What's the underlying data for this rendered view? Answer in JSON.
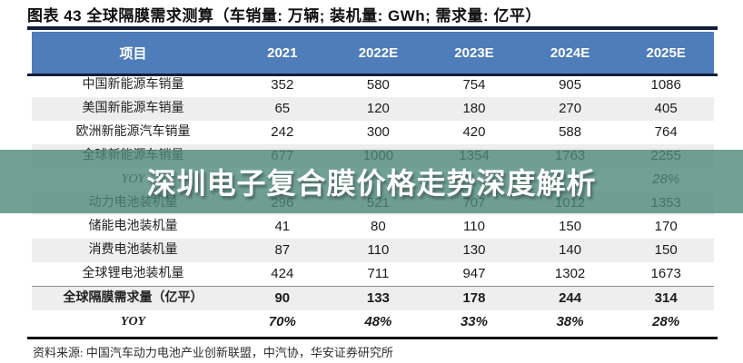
{
  "title": "图表 43 全球隔膜需求测算（车销量: 万辆; 装机量: GWh; 需求量: 亿平）",
  "table": {
    "header": [
      "项目",
      "2021",
      "2022E",
      "2023E",
      "2024E",
      "2025E"
    ],
    "rows": [
      {
        "label": "中国新能源车销量",
        "values": [
          "352",
          "580",
          "754",
          "905",
          "1086"
        ],
        "shaded": false,
        "style": "normal",
        "separator_top": false
      },
      {
        "label": "美国新能源车销量",
        "values": [
          "65",
          "120",
          "180",
          "270",
          "405"
        ],
        "shaded": true,
        "style": "normal",
        "separator_top": false
      },
      {
        "label": "欧洲新能源汽车销量",
        "values": [
          "242",
          "300",
          "420",
          "588",
          "764"
        ],
        "shaded": false,
        "style": "normal",
        "separator_top": false
      },
      {
        "label": "全球新能源车销量",
        "values": [
          "677",
          "1000",
          "1354",
          "1763",
          "2255"
        ],
        "shaded": true,
        "style": "normal",
        "separator_top": false
      },
      {
        "label": "YOY",
        "values": [
          "",
          "",
          "",
          "",
          "28%"
        ],
        "shaded": false,
        "style": "italic",
        "separator_top": false
      },
      {
        "label": "动力电池装机量",
        "values": [
          "296",
          "521",
          "707",
          "1012",
          "1353"
        ],
        "shaded": true,
        "style": "normal",
        "separator_top": false
      },
      {
        "label": "储能电池装机量",
        "values": [
          "41",
          "80",
          "110",
          "150",
          "170"
        ],
        "shaded": false,
        "style": "normal",
        "separator_top": false
      },
      {
        "label": "消费电池装机量",
        "values": [
          "87",
          "110",
          "130",
          "140",
          "150"
        ],
        "shaded": true,
        "style": "normal",
        "separator_top": false
      },
      {
        "label": "全球锂电池装机量",
        "values": [
          "424",
          "711",
          "947",
          "1302",
          "1673"
        ],
        "shaded": false,
        "style": "normal",
        "separator_top": false
      },
      {
        "label": "全球隔膜需求量（亿平）",
        "values": [
          "90",
          "133",
          "178",
          "244",
          "314"
        ],
        "shaded": true,
        "style": "bold",
        "separator_top": true
      },
      {
        "label": "YOY",
        "values": [
          "70%",
          "48%",
          "33%",
          "38%",
          "28%"
        ],
        "shaded": false,
        "style": "bold-italic",
        "separator_top": false
      }
    ]
  },
  "watermark": {
    "text": "深圳电子复合膜价格走势深度解析"
  },
  "source": "资料来源: 中国汽车动力电池产业创新联盟，中汽协，华安证券研究所",
  "colors": {
    "header_bg": "#4e7db9",
    "header_text": "#ffffff",
    "stripe": "#eeeeee",
    "rule_navy": "#141e3a",
    "rule_bottom": "#0e0e0e",
    "watermark_band": "rgba(77,138,122,0.80)",
    "watermark_text": "#ffffff"
  },
  "chart_data": {
    "type": "table",
    "title": "全球隔膜需求测算",
    "units": {
      "车销量": "万辆",
      "装机量": "GWh",
      "需求量": "亿平"
    },
    "columns": [
      "2021",
      "2022E",
      "2023E",
      "2024E",
      "2025E"
    ],
    "rows": [
      {
        "label": "中国新能源车销量",
        "values": [
          352,
          580,
          754,
          905,
          1086
        ]
      },
      {
        "label": "美国新能源车销量",
        "values": [
          65,
          120,
          180,
          270,
          405
        ]
      },
      {
        "label": "欧洲新能源汽车销量",
        "values": [
          242,
          300,
          420,
          588,
          764
        ]
      },
      {
        "label": "全球新能源车销量",
        "values": [
          677,
          1000,
          1354,
          1763,
          2255
        ]
      },
      {
        "label": "YOY",
        "values": [
          null,
          null,
          null,
          null,
          "28%"
        ]
      },
      {
        "label": "动力电池装机量",
        "values": [
          296,
          521,
          707,
          1012,
          1353
        ]
      },
      {
        "label": "储能电池装机量",
        "values": [
          41,
          80,
          110,
          150,
          170
        ]
      },
      {
        "label": "消费电池装机量",
        "values": [
          87,
          110,
          130,
          140,
          150
        ]
      },
      {
        "label": "全球锂电池装机量",
        "values": [
          424,
          711,
          947,
          1302,
          1673
        ]
      },
      {
        "label": "全球隔膜需求量（亿平）",
        "values": [
          90,
          133,
          178,
          244,
          314
        ]
      },
      {
        "label": "YOY",
        "values": [
          "70%",
          "48%",
          "33%",
          "38%",
          "28%"
        ]
      }
    ]
  }
}
